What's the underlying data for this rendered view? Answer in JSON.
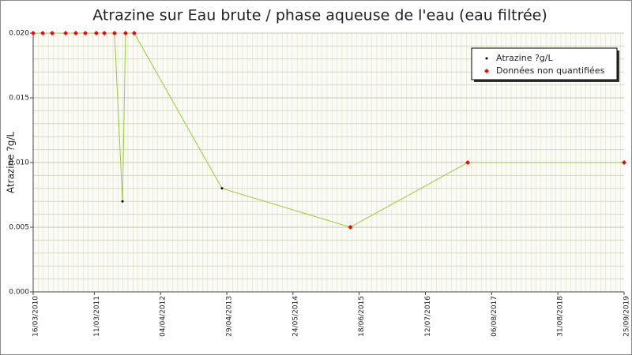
{
  "chart_data": {
    "type": "line",
    "title": "Atrazine sur Eau brute / phase aqueuse de l'eau (eau filtrée)",
    "ylabel": "Atrazine ?g/L",
    "x": [
      "16/03/2010",
      "11/05/2010",
      "06/07/2010",
      "23/09/2010",
      "22/11/2010",
      "17/01/2011",
      "23/03/2011",
      "09/05/2011",
      "08/07/2011",
      "24/08/2011",
      "11/09/2011",
      "01/11/2011",
      "01/04/2013",
      "27/04/2015",
      "18/03/2017",
      "25/09/2019"
    ],
    "values": [
      0.02,
      0.02,
      0.02,
      0.02,
      0.02,
      0.02,
      0.02,
      0.02,
      0.02,
      0.007,
      0.02,
      0.02,
      0.008,
      0.005,
      0.01,
      0.01
    ],
    "quantified": [
      false,
      false,
      false,
      false,
      false,
      false,
      false,
      false,
      false,
      true,
      false,
      false,
      true,
      false,
      false,
      false
    ],
    "line_color": "#99cc33",
    "legend": [
      {
        "name": "Atrazine ?g/L",
        "color": "#000000"
      },
      {
        "name": "Données non quantifiées",
        "color": "#ff0000"
      }
    ],
    "xlim": [
      "16/03/2010",
      "25/09/2019"
    ],
    "xticks": [
      "16/03/2010",
      "11/03/2011",
      "04/04/2012",
      "29/04/2013",
      "24/05/2014",
      "18/06/2015",
      "12/07/2016",
      "06/08/2017",
      "31/08/2018",
      "25/09/2019"
    ],
    "ylim": [
      0,
      0.02
    ],
    "yticks": [
      {
        "value": 0,
        "label": "0.000"
      },
      {
        "value": 0.005,
        "label": "0.005"
      },
      {
        "value": 0.01,
        "label": "0.010"
      },
      {
        "value": 0.015,
        "label": "0.015"
      },
      {
        "value": 0.02,
        "label": "0.020"
      }
    ],
    "yticks_minor": [
      0.001,
      0.002,
      0.003,
      0.004,
      0.006,
      0.007,
      0.008,
      0.009,
      0.011,
      0.012,
      0.013,
      0.014,
      0.016,
      0.017,
      0.018,
      0.019
    ],
    "grid": true
  }
}
